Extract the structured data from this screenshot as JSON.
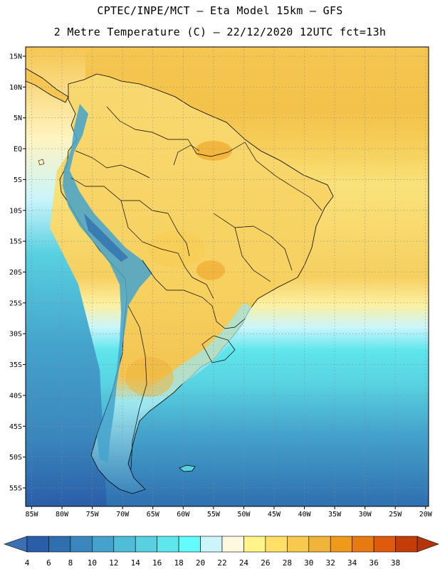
{
  "title": {
    "line1": "CPTEC/INPE/MCT –  Eta Model 15km – GFS",
    "line2": "2 Metre Temperature (C) – 22/12/2020 12UTC fct=13h"
  },
  "map": {
    "region": "South America",
    "lat_labels": [
      "15N",
      "10N",
      "5N",
      "EQ",
      "5S",
      "10S",
      "15S",
      "20S",
      "25S",
      "30S",
      "35S",
      "40S",
      "45S",
      "50S",
      "55S"
    ],
    "lon_labels": [
      "85W",
      "80W",
      "75W",
      "70W",
      "65W",
      "60W",
      "55W",
      "50W",
      "45W",
      "40W",
      "35W",
      "30W",
      "25W",
      "20W"
    ],
    "lat_values": [
      15,
      10,
      5,
      0,
      -5,
      -10,
      -15,
      -20,
      -25,
      -30,
      -35,
      -40,
      -45,
      -50,
      -55
    ],
    "lon_values": [
      -85,
      -80,
      -75,
      -70,
      -65,
      -60,
      -55,
      -50,
      -45,
      -40,
      -35,
      -30,
      -25,
      -20
    ],
    "lat_range": [
      -58,
      16.5
    ],
    "lon_range": [
      -86,
      -19.5
    ]
  },
  "legend": {
    "labels": [
      "4",
      "6",
      "8",
      "10",
      "12",
      "14",
      "16",
      "18",
      "20",
      "22",
      "24",
      "26",
      "28",
      "30",
      "32",
      "34",
      "36",
      "38"
    ],
    "colors": [
      "#2a5ea8",
      "#2f6fb0",
      "#3a86bd",
      "#44a3cc",
      "#4fbcd8",
      "#58d0e0",
      "#5fe6ec",
      "#63fbfb",
      "#cbf5fb",
      "#fff8e0",
      "#fff48a",
      "#ffe066",
      "#f7c94c",
      "#efb43a",
      "#ef9a1a",
      "#e87a12",
      "#df5a0c",
      "#c43d08"
    ],
    "low_color": "#3b6fb2",
    "high_color": "#b3350a"
  }
}
